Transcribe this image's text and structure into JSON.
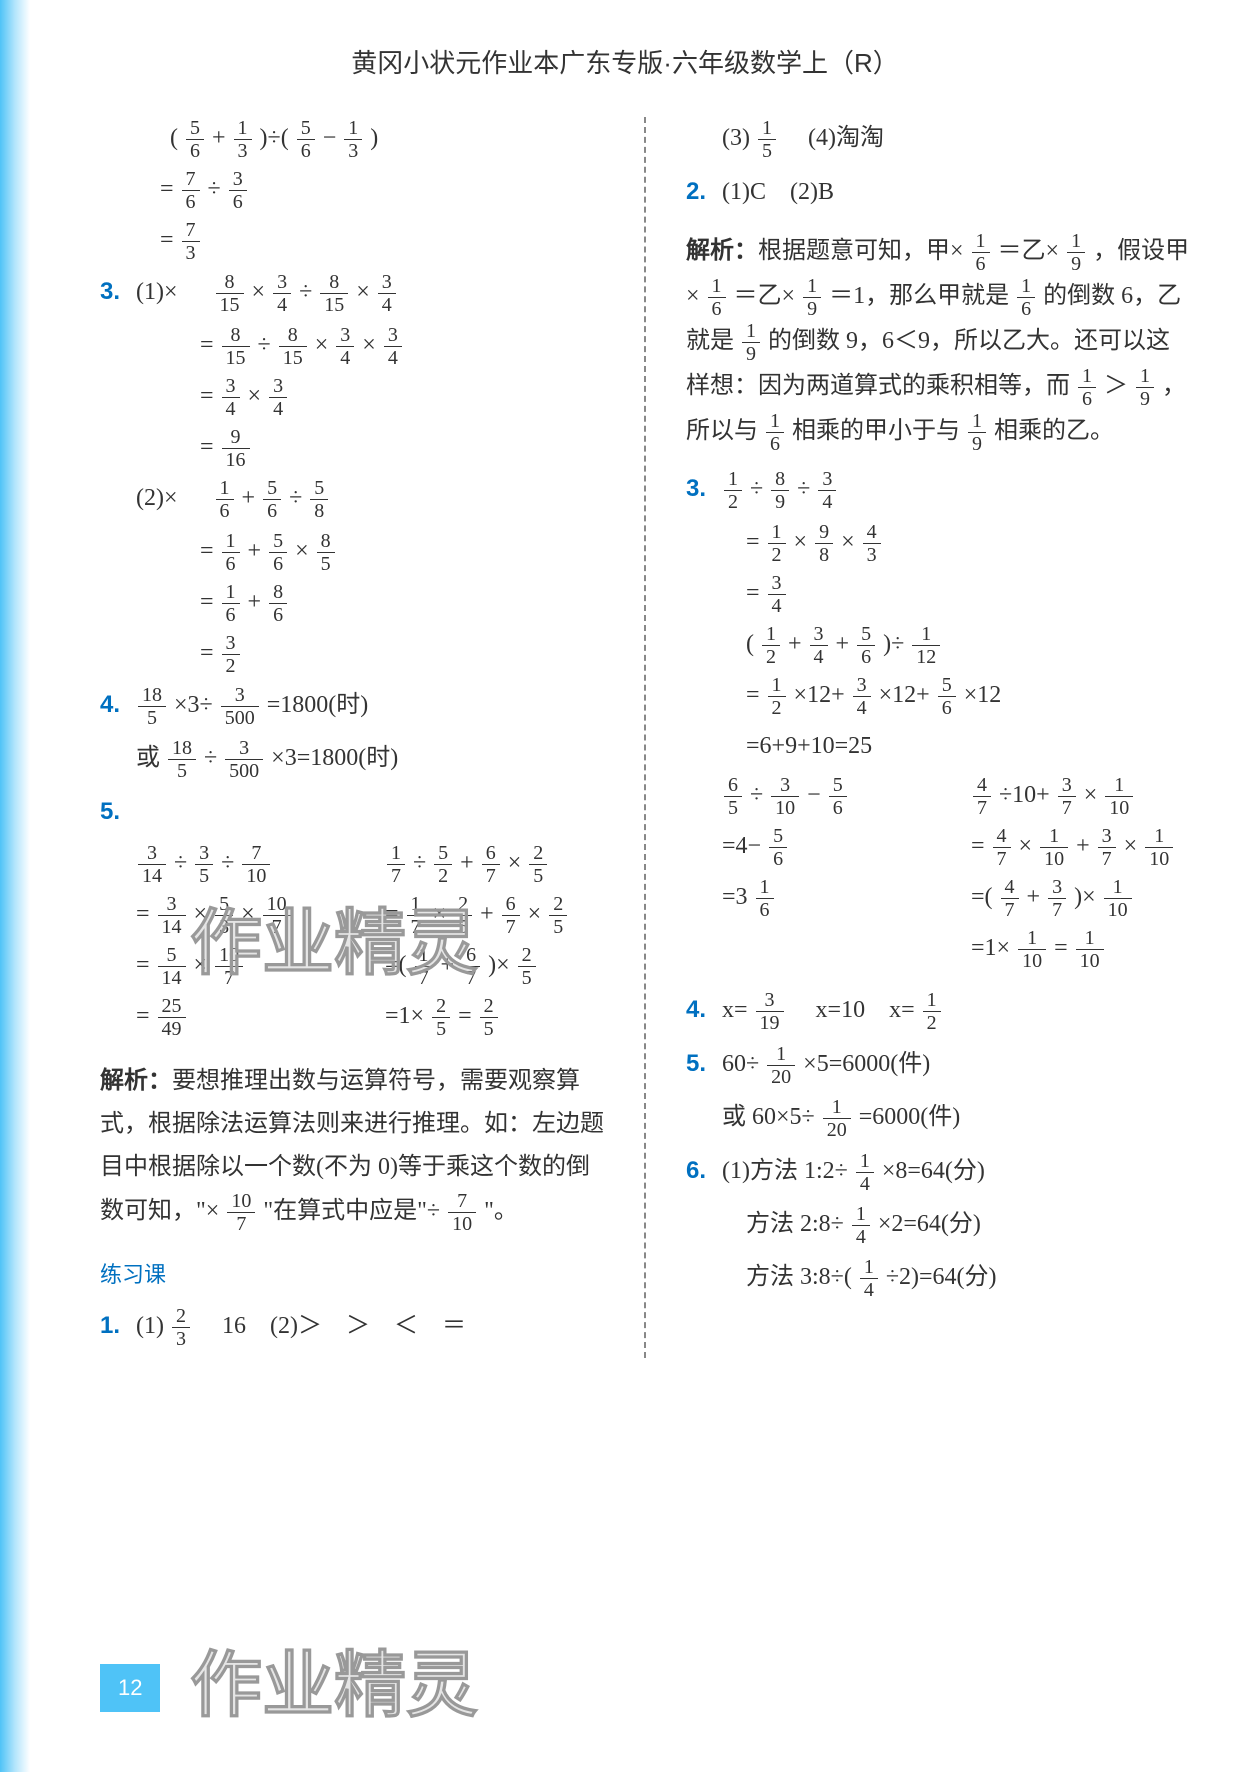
{
  "header": "黄冈小状元作业本广东专版·六年级数学上（R）",
  "pageNumber": "12",
  "watermark": "作业精灵",
  "left": {
    "top_eq": {
      "l1": "( 5/6 + 1/3 )÷( 5/6 − 1/3 )",
      "l2": "= 7/6 ÷ 3/6",
      "l3": "= 7/3"
    },
    "q3": {
      "num": "3.",
      "part1_prefix": "(1)×",
      "p1": {
        "l1": "8/15 × 3/4 ÷ 8/15 × 3/4",
        "l2": "= 8/15 ÷ 8/15 × 3/4 × 3/4",
        "l3": "= 3/4 × 3/4",
        "l4": "= 9/16"
      },
      "part2_prefix": "(2)×",
      "p2": {
        "l1": "1/6 + 5/6 ÷ 5/8",
        "l2": "= 1/6 + 5/6 × 8/5",
        "l3": "= 1/6 + 8/6",
        "l4": "= 3/2"
      }
    },
    "q4": {
      "num": "4.",
      "l1": "18/5 ×3÷ 3/500 =1800(时)",
      "l2": "或 18/5 ÷ 3/500 ×3=1800(时)"
    },
    "q5": {
      "num": "5.",
      "colA": {
        "l1": "3/14 ÷ 3/5 ÷ 7/10",
        "l2": "= 3/14 × 5/3 × 10/7",
        "l3": "= 5/14 × 10/7",
        "l4": "= 25/49"
      },
      "colB": {
        "l1": "1/7 ÷ 5/2 + 6/7 × 2/5",
        "l2": "= 1/7 × 2/5 + 6/7 × 2/5",
        "l3": "=( 1/7 + 6/7 )× 2/5",
        "l4": "=1× 2/5 = 2/5"
      }
    },
    "analysis": {
      "label": "解析：",
      "text1": "要想推理出数与运算符号，需要观察算式，根据除法运算法则来进行推理。如：左边题目中根据除以一个数(不为 0)等于乘这个数的倒数可知，\"× 10/7 \"在算式中应是\"÷ 7/10 \"。"
    },
    "practice": {
      "title": "练习课"
    },
    "q1": {
      "num": "1.",
      "text": "(1) 2/3 　16　(2)＞　＞　＜　＝"
    }
  },
  "right": {
    "top": "(3) 1/5 　(4)淘淘",
    "q2": {
      "num": "2.",
      "text": "(1)C　(2)B"
    },
    "analysis": {
      "label": "解析：",
      "text": "根据题意可知，甲× 1/6 ＝乙× 1/9 ，假设甲× 1/6 ＝乙× 1/9 ＝1，那么甲就是 1/6 的倒数 6，乙就是 1/9 的倒数 9，6＜9，所以乙大。还可以这样想：因为两道算式的乘积相等，而 1/6 ＞ 1/9 ，所以与 1/6 相乘的甲小于与 1/9 相乘的乙。"
    },
    "q3": {
      "num": "3.",
      "b1": {
        "l1": "1/2 ÷ 8/9 ÷ 3/4",
        "l2": "= 1/2 × 9/8 × 4/3",
        "l3": "= 3/4"
      },
      "b2": {
        "l1": "( 1/2 + 3/4 + 5/6 )÷ 1/12",
        "l2": "= 1/2 ×12+ 3/4 ×12+ 5/6 ×12",
        "l3": "=6+9+10=25"
      },
      "b3A": {
        "l1": "6/5 ÷ 3/10 − 5/6",
        "l2": "=4− 5/6",
        "l3": "=3 1/6"
      },
      "b3B": {
        "l1": "4/7 ÷10+ 3/7 × 1/10",
        "l2": "= 4/7 × 1/10 + 3/7 × 1/10",
        "l3": "=( 4/7 + 3/7 )× 1/10",
        "l4": "=1× 1/10 = 1/10"
      }
    },
    "q4": {
      "num": "4.",
      "text": "x= 3/19 　x=10　x= 1/2"
    },
    "q5": {
      "num": "5.",
      "l1": "60÷ 1/20 ×5=6000(件)",
      "l2": "或 60×5÷ 1/20 =6000(件)"
    },
    "q6": {
      "num": "6.",
      "l1": "(1)方法 1:2÷ 1/4 ×8=64(分)",
      "l2": "方法 2:8÷ 1/4 ×2=64(分)",
      "l3": "方法 3:8÷( 1/4 ÷2)=64(分)"
    }
  }
}
